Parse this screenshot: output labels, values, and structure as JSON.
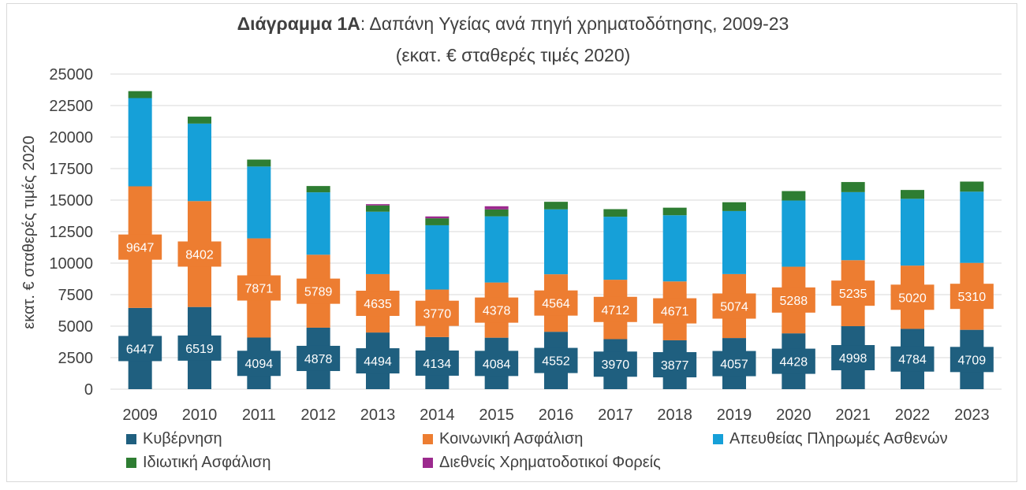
{
  "chart_data": {
    "type": "bar",
    "stacked": true,
    "title_bold": "Διάγραμμα 1Α",
    "title_rest": ": Δαπάνη Υγείας ανά πηγή χρηματοδότησης, 2009-23",
    "subtitle": "(εκατ. € σταθερές τιμές 2020)",
    "xlabel": "",
    "ylabel": "εκατ. € σταθερές τιμές 2020",
    "ylim": [
      0,
      25000
    ],
    "yticks": [
      0,
      2500,
      5000,
      7500,
      10000,
      12500,
      15000,
      17500,
      20000,
      22500,
      25000
    ],
    "grid": true,
    "legend_position": "bottom",
    "categories": [
      "2009",
      "2010",
      "2011",
      "2012",
      "2013",
      "2014",
      "2015",
      "2016",
      "2017",
      "2018",
      "2019",
      "2020",
      "2021",
      "2022",
      "2023"
    ],
    "series": [
      {
        "name": "Κυβέρνηση",
        "color": "#1f5f7f",
        "labeled": true,
        "values": [
          6447,
          6519,
          4094,
          4878,
          4494,
          4134,
          4084,
          4552,
          3970,
          3877,
          4057,
          4428,
          4998,
          4784,
          4709
        ]
      },
      {
        "name": "Κοινωνική Ασφάλιση",
        "color": "#ed7d31",
        "labeled": true,
        "values": [
          9647,
          8402,
          7871,
          5789,
          4635,
          3770,
          4378,
          4564,
          4712,
          4671,
          5074,
          5288,
          5235,
          5020,
          5310
        ]
      },
      {
        "name": "Απευθείας Πληρωμές Ασθενών",
        "color": "#16a0d8",
        "labeled": false,
        "values": [
          7000,
          6150,
          5700,
          4950,
          4950,
          5100,
          5250,
          5150,
          5000,
          5250,
          5000,
          5250,
          5400,
          5300,
          5650
        ]
      },
      {
        "name": "Ιδιωτική Ασφάλιση",
        "color": "#2e7d32",
        "labeled": false,
        "values": [
          550,
          550,
          550,
          500,
          500,
          550,
          550,
          600,
          600,
          600,
          700,
          750,
          800,
          700,
          800
        ]
      },
      {
        "name": "Διεθνείς Χρηματοδοτικοί Φορείς",
        "color": "#9c2a8e",
        "labeled": false,
        "values": [
          0,
          0,
          0,
          0,
          100,
          150,
          250,
          0,
          0,
          0,
          0,
          0,
          0,
          0,
          0
        ]
      }
    ]
  }
}
